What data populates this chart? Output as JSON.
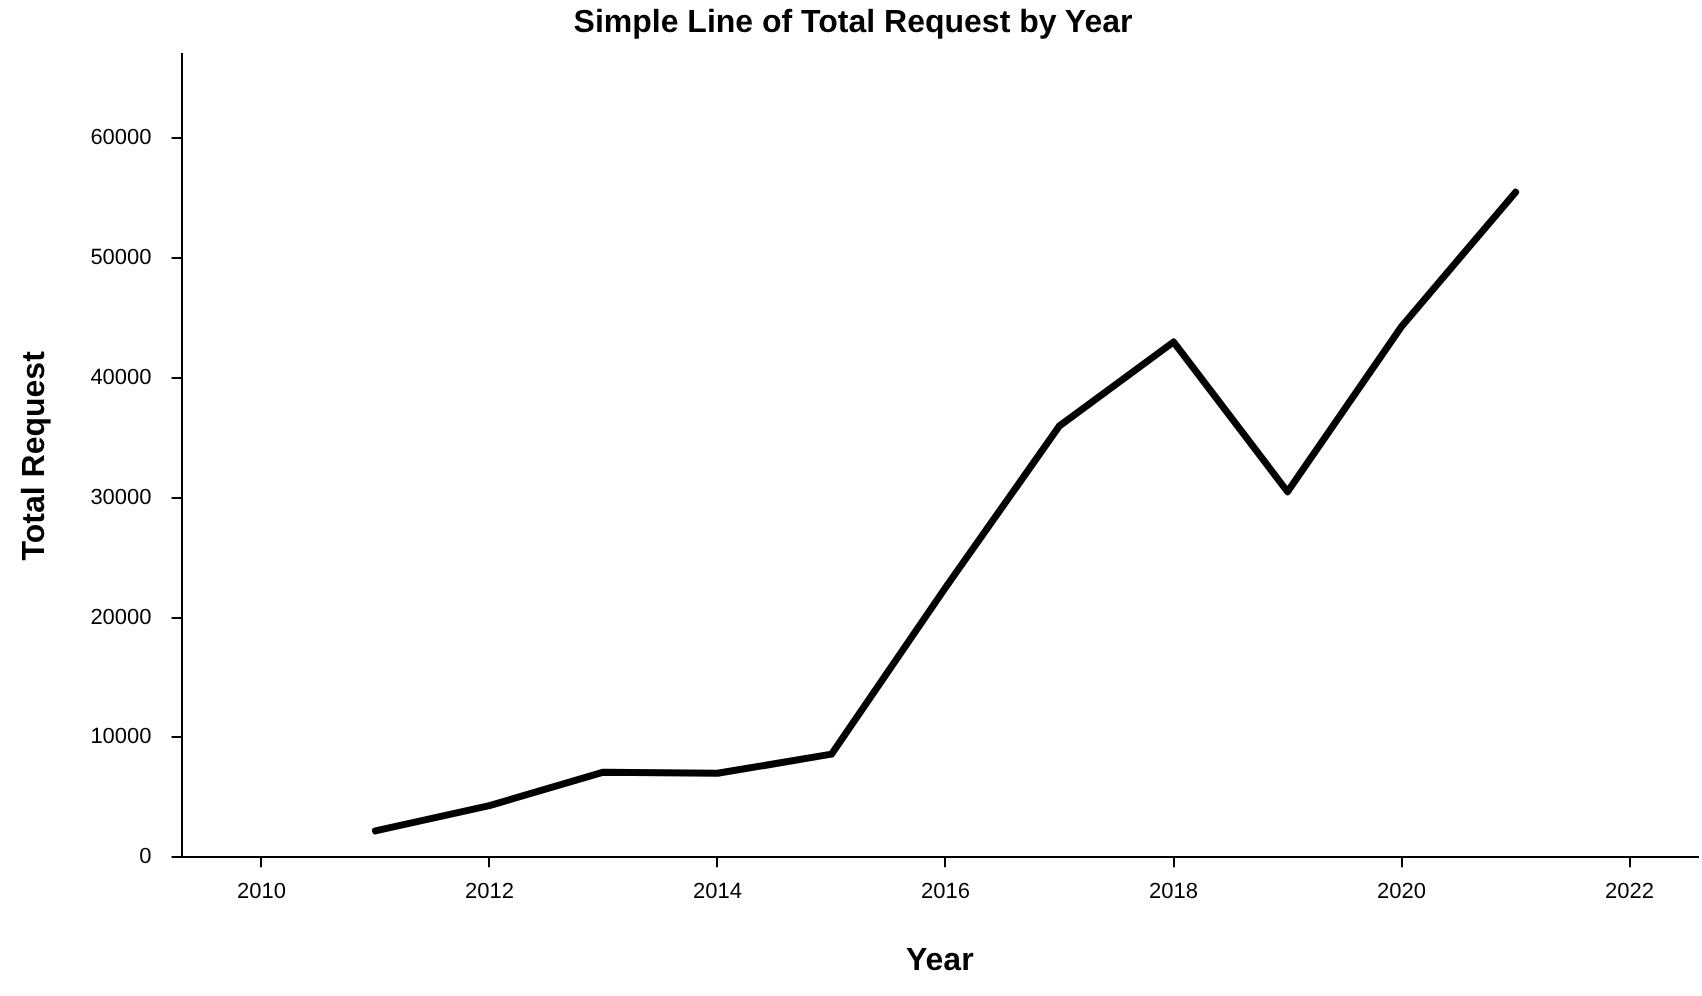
{
  "chart_data": {
    "type": "line",
    "title": "Simple Line of Total Request by Year",
    "xlabel": "Year",
    "ylabel": "Total Request",
    "x": [
      2011,
      2012,
      2013,
      2014,
      2015,
      2016,
      2017,
      2018,
      2019,
      2020,
      2021
    ],
    "series": [
      {
        "color": "#000000",
        "values": [
          2200,
          4300,
          7100,
          7000,
          8600,
          22500,
          36000,
          43000,
          30500,
          44300,
          55500
        ]
      }
    ],
    "xlim": [
      2009.3,
      2022.6
    ],
    "xticks": [
      2010,
      2012,
      2014,
      2016,
      2018,
      2020,
      2022
    ],
    "ylim": [
      0,
      67000
    ],
    "yticks": [
      0,
      10000,
      20000,
      30000,
      40000,
      50000,
      60000
    ],
    "grid": false,
    "legend": false,
    "marker": "none",
    "line_style": "solid"
  }
}
